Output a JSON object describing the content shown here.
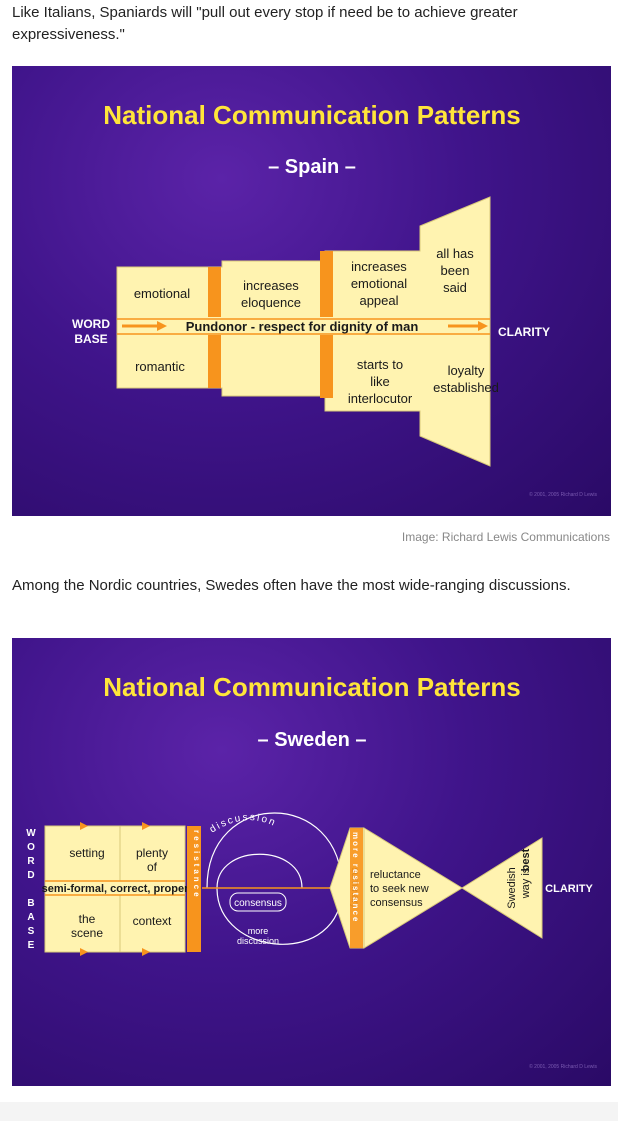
{
  "intro_spain": "Like Italians, Spaniards will \"pull out every stop if need be to achieve greater expressiveness.\"",
  "intro_sweden": "Among the Nordic countries, Swedes often have the most wide-ranging discussions.",
  "caption": "Image: Richard Lewis Communications",
  "colors": {
    "title": "#ffe53a",
    "box": "#fff3b0",
    "bar": "#f7941d",
    "bg": "#3f148a"
  },
  "spain": {
    "title": "National Communication Patterns",
    "subtitle": "– Spain –",
    "word": "WORD",
    "base": "BASE",
    "clarity": "CLARITY",
    "center": "Pundonor - respect for dignity of man",
    "top": [
      "emotional",
      "increases eloquence",
      "increases emotional appeal",
      "all has been said"
    ],
    "bottom": [
      "romantic",
      "starts to like interlocutor",
      "loyalty established"
    ],
    "copyright": "© 2001, 2005 Richard D Lewis"
  },
  "sweden": {
    "title": "National Communication Patterns",
    "subtitle": "– Sweden –",
    "word_letters": [
      "W",
      "O",
      "R",
      "D"
    ],
    "base_letters": [
      "B",
      "A",
      "S",
      "E"
    ],
    "setting": "setting",
    "plenty_of": "plenty of",
    "semiformal": "semi-formal, correct, proper",
    "the_scene": "the scene",
    "context": "context",
    "resistance": "resistance",
    "discussion": "discussion",
    "consensus": "consensus",
    "more_discussion": "more discussion",
    "summary": "summary",
    "more_resistance": "more resistance",
    "reluctance": "reluctance to seek new consensus",
    "swedish": "Swedish",
    "way_is": "way is",
    "best": "best",
    "clarity": "CLARITY",
    "copyright": "© 2001, 2005 Richard D Lewis"
  }
}
